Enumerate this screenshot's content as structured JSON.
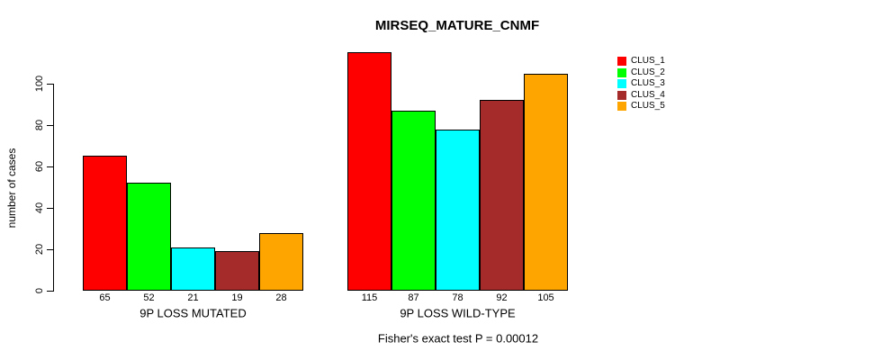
{
  "title": "MIRSEQ_MATURE_CNMF",
  "chart_data": {
    "type": "bar",
    "title": "MIRSEQ_MATURE_CNMF",
    "xlabel": "",
    "ylabel": "number of cases",
    "ylim": [
      0,
      115
    ],
    "yticks": [
      0,
      20,
      40,
      60,
      80,
      100
    ],
    "grid": false,
    "bar_value_labels": true,
    "legend_position": "right",
    "categories": [
      "9P LOSS MUTATED",
      "9P LOSS WILD-TYPE"
    ],
    "series": [
      {
        "name": "CLUS_1",
        "color": "#FF0000",
        "values": [
          65,
          115
        ]
      },
      {
        "name": "CLUS_2",
        "color": "#00FF00",
        "values": [
          52,
          87
        ]
      },
      {
        "name": "CLUS_3",
        "color": "#00FFFF",
        "values": [
          21,
          78
        ]
      },
      {
        "name": "CLUS_4",
        "color": "#A52A2A",
        "values": [
          19,
          92
        ]
      },
      {
        "name": "CLUS_5",
        "color": "#FFA500",
        "values": [
          28,
          105
        ]
      }
    ],
    "caption": "Fisher's exact test P = 0.00012"
  }
}
